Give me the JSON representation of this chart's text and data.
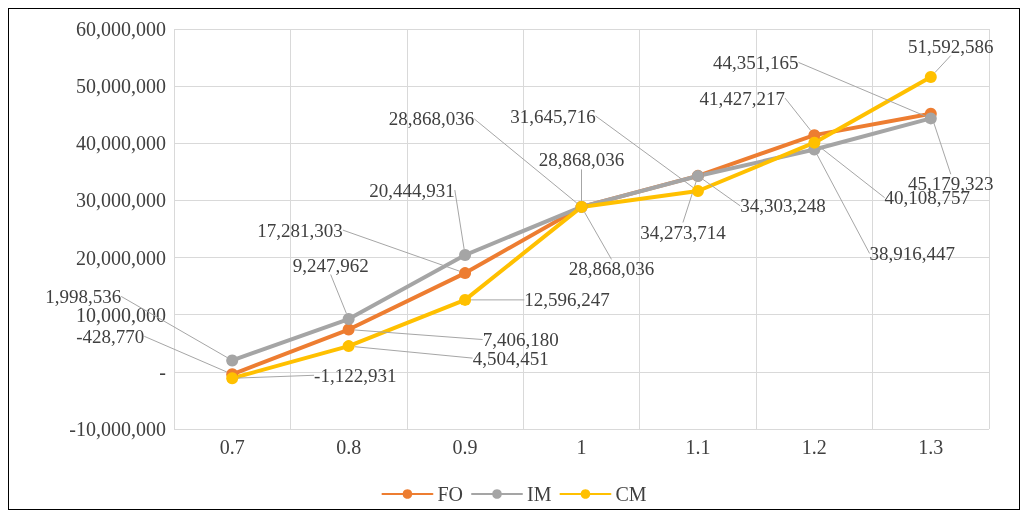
{
  "chart_data": {
    "type": "line",
    "categories": [
      "0.7",
      "0.8",
      "0.9",
      "1",
      "1.1",
      "1.2",
      "1.3"
    ],
    "series": [
      {
        "name": "FO",
        "color": "#ed7d31",
        "values": [
          -428770,
          7406180,
          17281303,
          28868036,
          34303248,
          41427217,
          45179323
        ],
        "value_labels": [
          "-428,770",
          "7,406,180",
          "17,281,303",
          "28,868,036",
          "34,303,248",
          "41,427,217",
          "45,179,323"
        ]
      },
      {
        "name": "IM",
        "color": "#a5a5a5",
        "values": [
          1998536,
          9247962,
          20444931,
          28868036,
          34273714,
          38916447,
          44351165
        ],
        "value_labels": [
          "1,998,536",
          "9,247,962",
          "20,444,931",
          "28,868,036",
          "34,273,714",
          "38,916,447",
          "44,351,165"
        ]
      },
      {
        "name": "CM",
        "color": "#ffc000",
        "values": [
          -1122931,
          4504451,
          12596247,
          28868036,
          31645716,
          40108757,
          51592586
        ],
        "value_labels": [
          "-1,122,931",
          "4,504,451",
          "12,596,247",
          "28,868,036",
          "31,645,716",
          "40,108,757",
          "51,592,586"
        ]
      }
    ],
    "ylim": [
      -10000000,
      60000000
    ],
    "yticks": [
      {
        "value": -10000000,
        "label": "-10,000,000"
      },
      {
        "value": 0,
        "label": "-"
      },
      {
        "value": 10000000,
        "label": "10,000,000"
      },
      {
        "value": 20000000,
        "label": "20,000,000"
      },
      {
        "value": 30000000,
        "label": "30,000,000"
      },
      {
        "value": 40000000,
        "label": "40,000,000"
      },
      {
        "value": 50000000,
        "label": "50,000,000"
      },
      {
        "value": 60000000,
        "label": "60,000,000"
      }
    ],
    "grid": true,
    "legend": "bottom",
    "marker": "circle",
    "line_style": "solid"
  }
}
